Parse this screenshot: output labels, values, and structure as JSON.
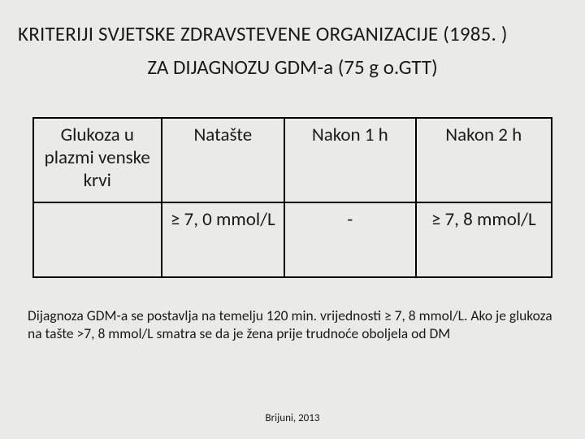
{
  "title": "KRITERIJI SVJETSKE ZDRAVSTEVENE ORGANIZACIJE (1985. )",
  "subtitle": "ZA DIJAGNOZU GDM-a  (75 g o.GTT)",
  "table": {
    "headers": [
      "Glukoza u plazmi venske krvi",
      "Natašte",
      "Nakon 1 h",
      "Nakon 2 h"
    ],
    "row": [
      "",
      "≥ 7, 0 mmol/L",
      "-",
      "≥ 7, 8 mmol/L"
    ]
  },
  "note": "Dijagnoza GDM-a se postavlja na temelju 120 min. vrijednosti ≥ 7, 8 mmol/L. Ako je glukoza na tašte >7, 8 mmol/L smatra se da je žena prije trudnoće  oboljela od DM",
  "footer": "Brijuni, 2013",
  "colors": {
    "background": "#eaeae8",
    "text": "#1a1a1a",
    "border": "#000000"
  }
}
